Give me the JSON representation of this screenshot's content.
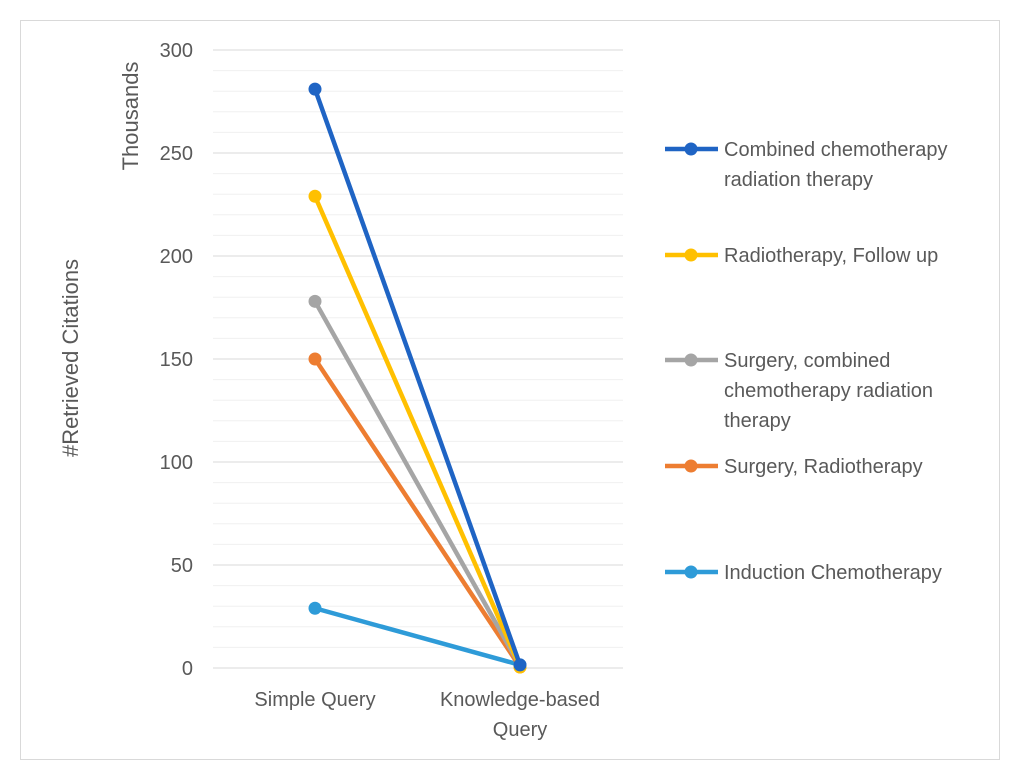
{
  "chart_data": {
    "type": "line",
    "title": "",
    "categories": [
      "Simple Query",
      "Knowledge-based Query"
    ],
    "category_lines": [
      [
        "Simple Query"
      ],
      [
        "Knowledge-based",
        "Query"
      ]
    ],
    "ylabel": "#Retrieved Citations",
    "yunit_label": "Thousands",
    "ylim": [
      0,
      300
    ],
    "yticks": [
      0,
      50,
      100,
      150,
      200,
      250,
      300
    ],
    "minor_gridlines": true,
    "legend_position": "right",
    "series": [
      {
        "name": "Combined chemotherapy radiation therapy",
        "lines": [
          "Combined chemotherapy",
          "radiation therapy"
        ],
        "color": "#1f64c4",
        "values": [
          281,
          1.5
        ]
      },
      {
        "name": "Radiotherapy, Follow up",
        "lines": [
          "Radiotherapy, Follow up"
        ],
        "color": "#ffc000",
        "values": [
          229,
          0.5
        ]
      },
      {
        "name": "Surgery, combined chemotherapy radiation therapy",
        "lines": [
          "Surgery, combined",
          "chemotherapy radiation",
          "therapy"
        ],
        "color": "#a5a5a5",
        "values": [
          178,
          1
        ]
      },
      {
        "name": "Surgery, Radiotherapy",
        "lines": [
          "Surgery, Radiotherapy"
        ],
        "color": "#ed7d31",
        "values": [
          150,
          0.5
        ]
      },
      {
        "name": "Induction Chemotherapy",
        "lines": [
          "Induction Chemotherapy"
        ],
        "color": "#2e9bd8",
        "values": [
          29,
          1.5
        ]
      }
    ]
  }
}
